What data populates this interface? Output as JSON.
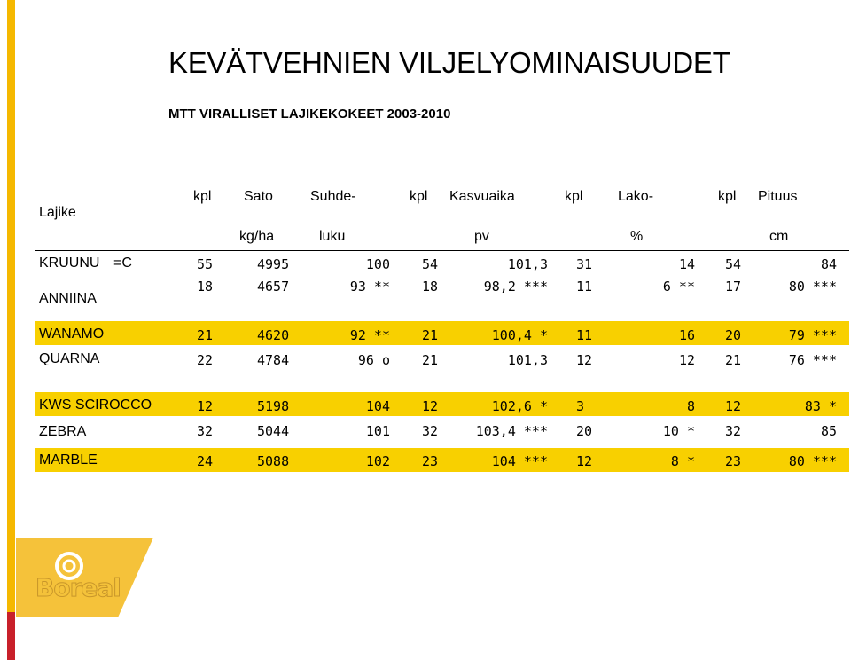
{
  "title": "KEVÄTVEHNIEN VILJELYOMINAISUUDET",
  "subtitle": "MTT VIRALLISET LAJIKEKOKEET 2003-2010",
  "header": {
    "lajike": "Lajike",
    "row1": [
      "kpl",
      "Sato",
      "Suhde-",
      "kpl",
      "Kasvuaika",
      "kpl",
      "Lako-",
      "kpl",
      "Pituus"
    ],
    "row2": [
      "kg/ha",
      "luku",
      "pv",
      "%",
      "cm"
    ]
  },
  "rows": [
    {
      "name": "KRUUNU",
      "suffix": "=C",
      "cells": [
        "55",
        "4995",
        "100",
        "54",
        "101,3",
        "31",
        "14",
        "54",
        "84"
      ]
    },
    {
      "name": "ANNIINA",
      "suffix": "",
      "cells": [
        "18",
        "4657",
        "93 **",
        "18",
        "98,2 ***",
        "11",
        "6 **",
        "17",
        "80 ***"
      ]
    },
    {
      "name": "WANAMO",
      "suffix": "",
      "cells": [
        "21",
        "4620",
        "92 **",
        "21",
        "100,4 *",
        "11",
        "16",
        "20",
        "79 ***"
      ]
    },
    {
      "name": "QUARNA",
      "suffix": "",
      "cells": [
        "22",
        "4784",
        "96 o",
        "21",
        "101,3",
        "12",
        "12",
        "21",
        "76 ***"
      ]
    },
    {
      "name": "KWS SCIROCCO",
      "suffix": "",
      "cells": [
        "12",
        "5198",
        "104",
        "12",
        "102,6 *",
        "3",
        "8",
        "12",
        "83 *"
      ]
    },
    {
      "name": "ZEBRA",
      "suffix": "",
      "cells": [
        "32",
        "5044",
        "101",
        "32",
        "103,4 ***",
        "20",
        "10 *",
        "32",
        "85"
      ]
    },
    {
      "name": "MARBLE",
      "suffix": "",
      "cells": [
        "24",
        "5088",
        "102",
        "23",
        "104 ***",
        "12",
        "8 *",
        "23",
        "80 ***"
      ]
    }
  ],
  "logo": {
    "text": "Boreal"
  },
  "colors": {
    "accent": "#f5b800",
    "highlight": "#f8d000"
  }
}
